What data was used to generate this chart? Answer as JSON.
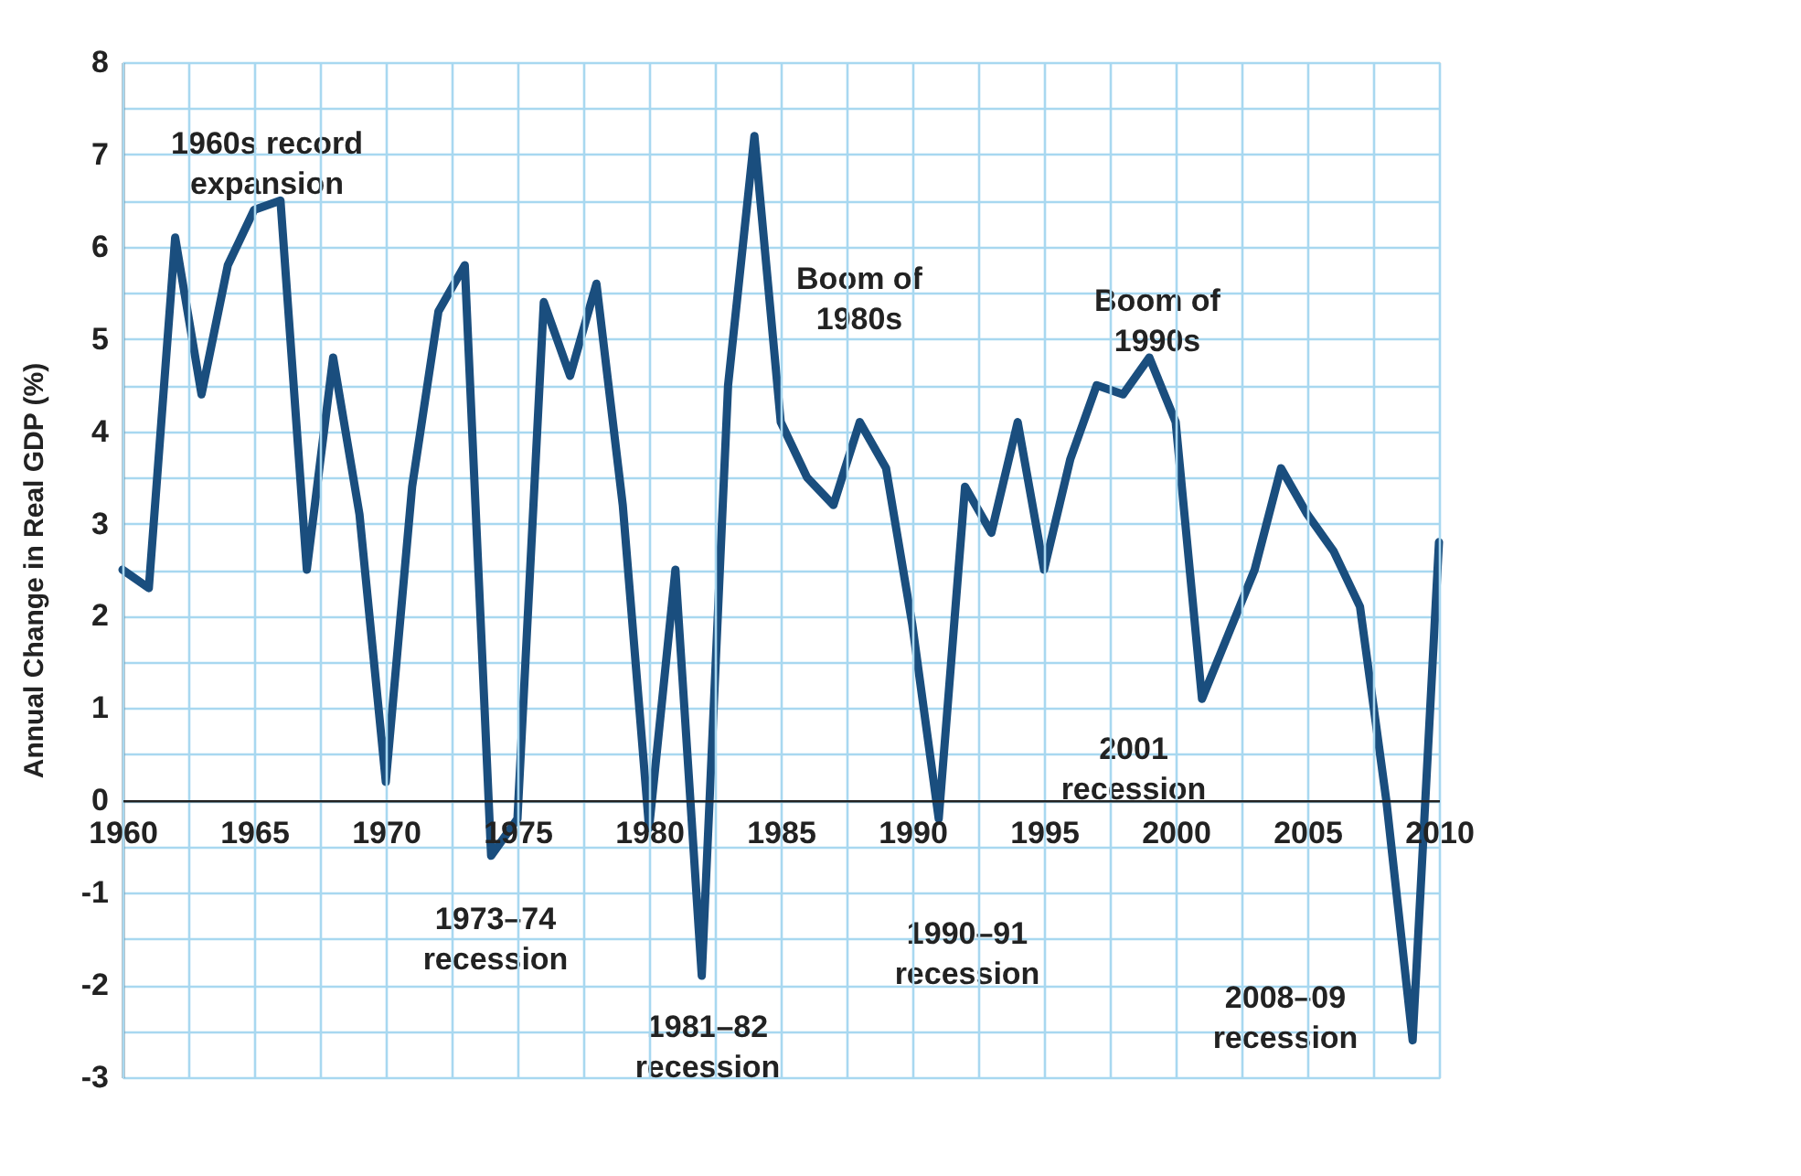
{
  "chart_data": {
    "type": "line",
    "ylabel": "Annual Change in Real GDP (%)",
    "x": [
      1960,
      1961,
      1962,
      1963,
      1964,
      1965,
      1966,
      1967,
      1968,
      1969,
      1970,
      1971,
      1972,
      1973,
      1974,
      1975,
      1976,
      1977,
      1978,
      1979,
      1980,
      1981,
      1982,
      1983,
      1984,
      1985,
      1986,
      1987,
      1988,
      1989,
      1990,
      1991,
      1992,
      1993,
      1994,
      1995,
      1996,
      1997,
      1998,
      1999,
      2000,
      2001,
      2002,
      2003,
      2004,
      2005,
      2006,
      2007,
      2008,
      2009,
      2010
    ],
    "series": [
      {
        "color": "#1a4e7e",
        "values": [
          2.5,
          2.3,
          6.1,
          4.4,
          5.8,
          6.4,
          6.5,
          2.5,
          4.8,
          3.1,
          0.2,
          3.4,
          5.3,
          5.8,
          -0.6,
          -0.2,
          5.4,
          4.6,
          5.6,
          3.2,
          -0.3,
          2.5,
          -1.9,
          4.5,
          7.2,
          4.1,
          3.5,
          3.2,
          4.1,
          3.6,
          1.9,
          -0.2,
          3.4,
          2.9,
          4.1,
          2.5,
          3.7,
          4.5,
          4.4,
          4.8,
          4.1,
          1.1,
          1.8,
          2.5,
          3.6,
          3.1,
          2.7,
          2.1,
          0.0,
          -2.6,
          2.8
        ]
      }
    ],
    "xlim": [
      1960,
      2010
    ],
    "xticks": [
      1960,
      {
        "value": 1962.5,
        "label": null
      },
      1965,
      {
        "value": 1967.5,
        "label": null
      },
      1970,
      {
        "value": 1972.5,
        "label": null
      },
      1975,
      {
        "value": 1977.5,
        "label": null
      },
      1980,
      {
        "value": 1982.5,
        "label": null
      },
      1985,
      {
        "value": 1987.5,
        "label": null
      },
      1990,
      {
        "value": 1992.5,
        "label": null
      },
      1995,
      {
        "value": 1997.5,
        "label": null
      },
      2000,
      {
        "value": 2002.5,
        "label": null
      },
      2005,
      {
        "value": 2007.5,
        "label": null
      },
      2010
    ],
    "ylim": [
      -3,
      8
    ],
    "yticks": [
      -3,
      {
        "value": -2.5,
        "label": null
      },
      -2,
      {
        "value": -1.5,
        "label": null
      },
      -1,
      {
        "value": -0.5,
        "label": null
      },
      0,
      {
        "value": 0.5,
        "label": null
      },
      1,
      {
        "value": 1.5,
        "label": null
      },
      2,
      {
        "value": 2.5,
        "label": null
      },
      3,
      {
        "value": 3.5,
        "label": null
      },
      4,
      {
        "value": 4.5,
        "label": null
      },
      5,
      {
        "value": 5.5,
        "label": null
      },
      6,
      {
        "value": 6.5,
        "label": null
      },
      7,
      {
        "value": 7.5,
        "label": null
      },
      8
    ],
    "grid": true,
    "marker": "none",
    "line_style": "solid",
    "annotations": [
      "1960s record\nexpansion",
      "1973–74\nrecession",
      "1981–82\nrecession",
      "Boom of\n1980s",
      "1990–91\nrecession",
      "Boom of\n1990s",
      "2001\nrecession",
      "2008–09\nrecession"
    ]
  }
}
